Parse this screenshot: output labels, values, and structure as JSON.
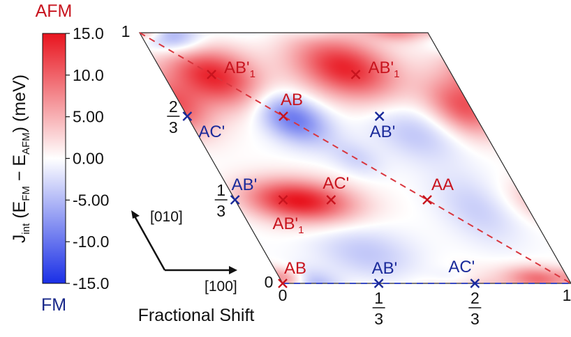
{
  "chart_data": {
    "type": "heatmap",
    "colorbar": {
      "top_label": "AFM",
      "bottom_label": "FM",
      "axis_label": {
        "main": "J",
        "sub_int": "int",
        "open": " (E",
        "sub_fm": "FM",
        "minus": " − E",
        "sub_afm": "AFM",
        "close": ") (meV)"
      },
      "ticks": [
        "15.0",
        "10.0",
        "5.00",
        "0.00",
        "-5.00",
        "-10.0",
        "-15.0"
      ],
      "tick_values": [
        15,
        10,
        5,
        0,
        -5,
        -10,
        -15
      ],
      "range": [
        -15,
        15
      ],
      "colors": {
        "max": "#e8141e",
        "mid": "#ffffff",
        "min": "#1a2fe6"
      }
    },
    "xlabel": "Fractional Shift",
    "x_ticks": [
      {
        "value": 0,
        "text": "0"
      },
      {
        "value": 0.3333,
        "num": "1",
        "den": "3"
      },
      {
        "value": 0.6667,
        "num": "2",
        "den": "3"
      },
      {
        "value": 1,
        "text": "1"
      }
    ],
    "y_ticks": [
      {
        "value": 0,
        "text": "0"
      },
      {
        "value": 0.3333,
        "num": "1",
        "den": "3"
      },
      {
        "value": 0.6667,
        "num": "2",
        "den": "3"
      },
      {
        "value": 1,
        "text": "1"
      }
    ],
    "direction_labels": {
      "a": "[100]",
      "b": "[010]"
    },
    "dashed_line": {
      "from": [
        0,
        0
      ],
      "to": [
        1,
        0
      ],
      "from2": [
        0,
        1
      ],
      "to2": [
        1,
        0
      ],
      "color": "#d9363e"
    },
    "points": [
      {
        "label": "AB",
        "sub": "",
        "u": 0.0,
        "v": 0.0,
        "marker_color": "red"
      },
      {
        "label": "AB'",
        "sub": "",
        "u": 0.3333,
        "v": 0.0,
        "marker_color": "blue"
      },
      {
        "label": "AC'",
        "sub": "",
        "u": 0.6667,
        "v": 0.0,
        "marker_color": "blue"
      },
      {
        "label": "AB'",
        "sub": "",
        "u": 0.0,
        "v": 0.3333,
        "marker_color": "blue"
      },
      {
        "label": "AB'",
        "sub": "1",
        "u": 0.1667,
        "v": 0.3333,
        "marker_color": "red"
      },
      {
        "label": "AC'",
        "sub": "",
        "u": 0.3333,
        "v": 0.3333,
        "marker_color": "red"
      },
      {
        "label": "AA",
        "sub": "",
        "u": 0.6667,
        "v": 0.3333,
        "marker_color": "red"
      },
      {
        "label": "AC'",
        "sub": "",
        "u": 0.0,
        "v": 0.6667,
        "marker_color": "blue"
      },
      {
        "label": "AB",
        "sub": "",
        "u": 0.3333,
        "v": 0.6667,
        "marker_color": "red"
      },
      {
        "label": "AB'",
        "sub": "",
        "u": 0.6667,
        "v": 0.6667,
        "marker_color": "blue"
      },
      {
        "label": "AB'",
        "sub": "1",
        "u": 0.1667,
        "v": 0.8333,
        "marker_color": "red"
      },
      {
        "label": "AB'",
        "sub": "1",
        "u": 0.6667,
        "v": 0.8333,
        "marker_color": "red"
      }
    ],
    "blobs": [
      {
        "u": 0.17,
        "v": 0.83,
        "su": 0.11,
        "sv": 0.09,
        "value": 14
      },
      {
        "u": 0.64,
        "v": 0.86,
        "su": 0.12,
        "sv": 0.09,
        "value": 14
      },
      {
        "u": 0.22,
        "v": 0.33,
        "su": 0.13,
        "sv": 0.06,
        "value": 15
      },
      {
        "u": 0.97,
        "v": 0.7,
        "su": 0.08,
        "sv": 0.08,
        "value": 10
      },
      {
        "u": 0.9,
        "v": 0.02,
        "su": 0.08,
        "sv": 0.035,
        "value": 9
      },
      {
        "u": 0.03,
        "v": 0.02,
        "su": 0.04,
        "sv": 0.03,
        "value": 6
      },
      {
        "u": 0.36,
        "v": 0.66,
        "su": 0.08,
        "sv": 0.07,
        "value": -10
      },
      {
        "u": 0.1,
        "v": 0.98,
        "su": 0.08,
        "sv": 0.05,
        "value": -8
      },
      {
        "u": 0.75,
        "v": 0.6,
        "su": 0.1,
        "sv": 0.08,
        "value": -4
      },
      {
        "u": 0.35,
        "v": 0.12,
        "su": 0.12,
        "sv": 0.08,
        "value": -4
      },
      {
        "u": 0.82,
        "v": 0.3,
        "su": 0.09,
        "sv": 0.1,
        "value": -3.5
      },
      {
        "u": 0.5,
        "v": 0.5,
        "su": 0.06,
        "sv": 0.05,
        "value": -3
      },
      {
        "u": 0.6,
        "v": 0.02,
        "su": 0.06,
        "sv": 0.03,
        "value": -2.5
      }
    ]
  }
}
